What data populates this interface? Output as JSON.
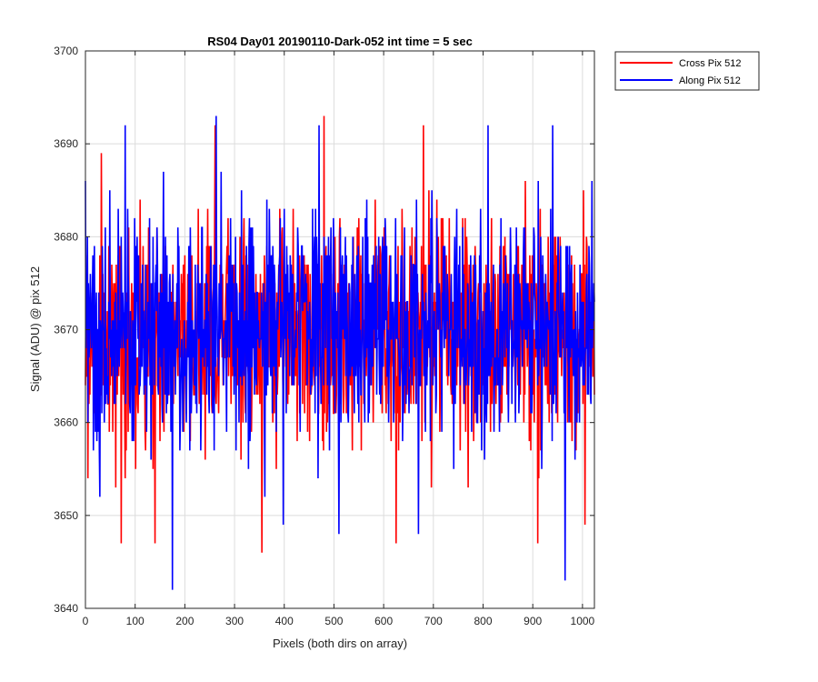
{
  "chart_data": {
    "type": "line",
    "title": "RS04 Day01 20190110-Dark-052 int time = 5 sec",
    "xlabel": "Pixels (both dirs on array)",
    "ylabel": "Signal (ADU) @ pix 512",
    "xlim": [
      0,
      1024
    ],
    "ylim": [
      3640,
      3700
    ],
    "xticks": [
      "0",
      "100",
      "200",
      "300",
      "400",
      "500",
      "600",
      "700",
      "800",
      "900",
      "1000"
    ],
    "yticks": [
      "3640",
      "3650",
      "3660",
      "3670",
      "3680",
      "3690",
      "3700"
    ],
    "grid": true,
    "legend_position": "outside-top-right",
    "series": [
      {
        "name": "Cross Pix 512",
        "color": "#ff0000",
        "baseline": 3670,
        "noise_std": 6,
        "extremes": [
          {
            "x": 5,
            "y": 3654
          },
          {
            "x": 32,
            "y": 3689
          },
          {
            "x": 72,
            "y": 3647
          },
          {
            "x": 140,
            "y": 3647
          },
          {
            "x": 261,
            "y": 3692
          },
          {
            "x": 355,
            "y": 3646
          },
          {
            "x": 480,
            "y": 3693
          },
          {
            "x": 625,
            "y": 3647
          },
          {
            "x": 680,
            "y": 3692
          },
          {
            "x": 910,
            "y": 3647
          },
          {
            "x": 1005,
            "y": 3649
          }
        ]
      },
      {
        "name": "Along Pix 512",
        "color": "#0000ff",
        "baseline": 3670,
        "noise_std": 6,
        "extremes": [
          {
            "x": 0,
            "y": 3686
          },
          {
            "x": 80,
            "y": 3692
          },
          {
            "x": 175,
            "y": 3642
          },
          {
            "x": 263,
            "y": 3693
          },
          {
            "x": 398,
            "y": 3649
          },
          {
            "x": 470,
            "y": 3692
          },
          {
            "x": 510,
            "y": 3648
          },
          {
            "x": 670,
            "y": 3648
          },
          {
            "x": 810,
            "y": 3692
          },
          {
            "x": 940,
            "y": 3692
          },
          {
            "x": 965,
            "y": 3643
          }
        ]
      }
    ]
  }
}
